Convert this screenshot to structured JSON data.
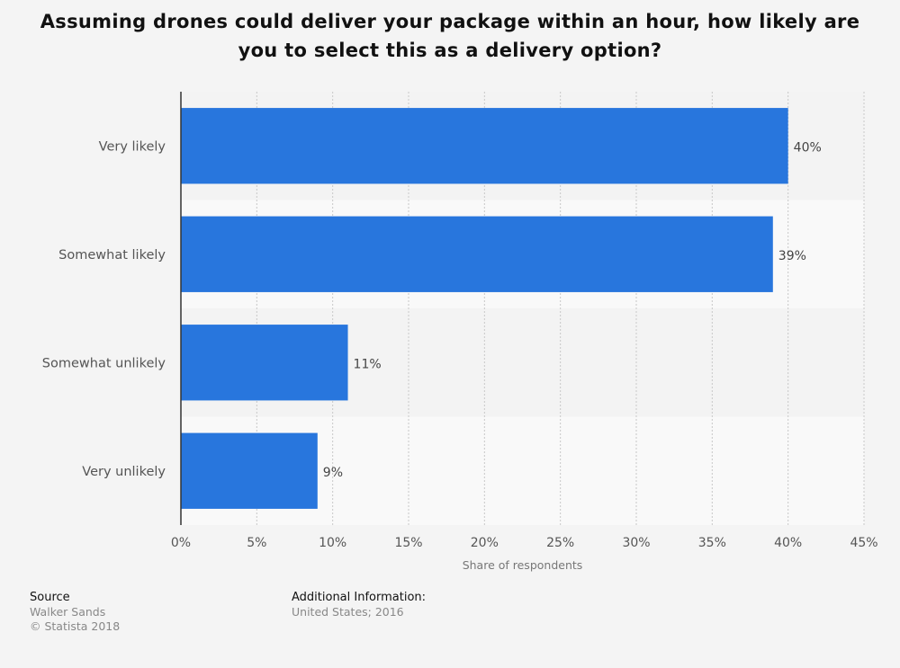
{
  "chart_data": {
    "type": "bar",
    "orientation": "horizontal",
    "title": "Assuming drones could deliver your package within an hour, how likely are you to select this as a delivery option?",
    "xlabel": "Share of respondents",
    "categories": [
      "Very likely",
      "Somewhat likely",
      "Somewhat unlikely",
      "Very unlikely"
    ],
    "values": [
      40,
      39,
      11,
      9
    ],
    "value_labels": [
      "40%",
      "39%",
      "11%",
      "9%"
    ],
    "xlim": [
      0,
      45
    ],
    "ticks": [
      0,
      5,
      10,
      15,
      20,
      25,
      30,
      35,
      40,
      45
    ],
    "tick_labels": [
      "0%",
      "5%",
      "10%",
      "15%",
      "20%",
      "25%",
      "30%",
      "35%",
      "40%",
      "45%"
    ],
    "bar_color": "#2876dd",
    "grid": true
  },
  "footer": {
    "source_label": "Source",
    "source_value": "Walker Sands",
    "copyright": "© Statista 2018",
    "additional_label": "Additional Information:",
    "additional_value": "United States; 2016"
  }
}
